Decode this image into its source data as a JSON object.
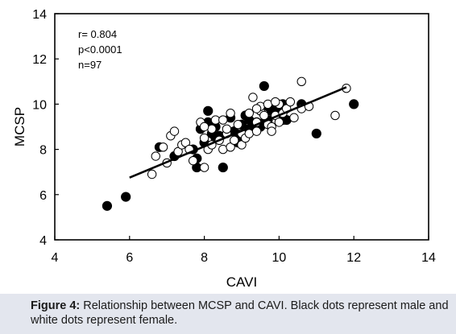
{
  "chart_data": {
    "type": "scatter",
    "xlabel": "CAVI",
    "ylabel": "MCSP",
    "xlim": [
      4,
      14
    ],
    "ylim": [
      4,
      14
    ],
    "x_ticks": [
      4,
      6,
      8,
      10,
      12,
      14
    ],
    "y_ticks": [
      4,
      6,
      8,
      10,
      12,
      14
    ],
    "grid": false,
    "annotations": [
      "r= 0.804",
      "p<0.0001",
      "n=97"
    ],
    "colors": {
      "male": "#000000",
      "female": "#ffffff",
      "outline": "#000000"
    },
    "series": [
      {
        "marker": "filled-circle",
        "points": [
          [
            5.4,
            5.5
          ],
          [
            5.9,
            5.9
          ],
          [
            6.8,
            8.1
          ],
          [
            7.2,
            7.7
          ],
          [
            7.7,
            8.0
          ],
          [
            7.8,
            7.6
          ],
          [
            7.8,
            7.2
          ],
          [
            7.9,
            8.9
          ],
          [
            8.0,
            8.3
          ],
          [
            8.1,
            9.2
          ],
          [
            8.1,
            9.7
          ],
          [
            8.2,
            8.7
          ],
          [
            8.3,
            9.0
          ],
          [
            8.3,
            8.5
          ],
          [
            8.4,
            8.6
          ],
          [
            8.5,
            7.2
          ],
          [
            8.7,
            9.4
          ],
          [
            8.8,
            8.8
          ],
          [
            8.9,
            8.6
          ],
          [
            8.9,
            8.3
          ],
          [
            9.0,
            9.1
          ],
          [
            9.1,
            9.5
          ],
          [
            9.2,
            8.9
          ],
          [
            9.2,
            9.3
          ],
          [
            9.3,
            9.0
          ],
          [
            9.4,
            9.2
          ],
          [
            9.5,
            9.0
          ],
          [
            9.6,
            10.8
          ],
          [
            9.6,
            9.2
          ],
          [
            9.7,
            9.3
          ],
          [
            9.7,
            9.9
          ],
          [
            9.8,
            9.7
          ],
          [
            9.9,
            9.8
          ],
          [
            10.0,
            9.6
          ],
          [
            10.1,
            9.3
          ],
          [
            10.1,
            10.0
          ],
          [
            10.2,
            9.3
          ],
          [
            10.6,
            10.0
          ],
          [
            11.0,
            8.7
          ],
          [
            12.0,
            10.0
          ]
        ]
      },
      {
        "marker": "open-circle",
        "points": [
          [
            6.6,
            6.9
          ],
          [
            6.7,
            7.7
          ],
          [
            6.9,
            8.1
          ],
          [
            7.0,
            7.4
          ],
          [
            7.1,
            8.6
          ],
          [
            7.2,
            8.8
          ],
          [
            7.3,
            7.9
          ],
          [
            7.4,
            8.2
          ],
          [
            7.5,
            8.3
          ],
          [
            7.6,
            8.0
          ],
          [
            7.9,
            9.2
          ],
          [
            8.0,
            7.2
          ],
          [
            8.0,
            8.5
          ],
          [
            8.1,
            8.0
          ],
          [
            8.2,
            8.2
          ],
          [
            8.2,
            8.9
          ],
          [
            8.3,
            9.3
          ],
          [
            8.4,
            8.4
          ],
          [
            8.5,
            8.0
          ],
          [
            8.5,
            9.3
          ],
          [
            8.6,
            8.7
          ],
          [
            8.7,
            8.1
          ],
          [
            8.8,
            8.4
          ],
          [
            8.9,
            9.1
          ],
          [
            9.0,
            8.2
          ],
          [
            9.0,
            8.7
          ],
          [
            9.1,
            8.5
          ],
          [
            9.2,
            9.6
          ],
          [
            9.2,
            8.7
          ],
          [
            9.3,
            10.3
          ],
          [
            9.4,
            9.2
          ],
          [
            9.4,
            8.8
          ],
          [
            9.5,
            9.7
          ],
          [
            9.5,
            9.9
          ],
          [
            9.6,
            9.5
          ],
          [
            9.7,
            9.1
          ],
          [
            9.7,
            10.0
          ],
          [
            9.8,
            9.0
          ],
          [
            9.8,
            8.8
          ],
          [
            9.9,
            9.5
          ],
          [
            10.0,
            9.2
          ],
          [
            10.0,
            10.0
          ],
          [
            10.1,
            9.6
          ],
          [
            10.2,
            9.8
          ],
          [
            10.3,
            10.1
          ],
          [
            10.6,
            9.8
          ],
          [
            10.6,
            11.0
          ],
          [
            10.8,
            9.9
          ],
          [
            11.5,
            9.5
          ],
          [
            11.8,
            10.7
          ],
          [
            8.0,
            9.0
          ],
          [
            9.9,
            10.1
          ],
          [
            8.7,
            9.6
          ],
          [
            7.7,
            7.5
          ],
          [
            9.4,
            9.8
          ],
          [
            8.6,
            8.9
          ],
          [
            10.4,
            9.4
          ]
        ]
      }
    ],
    "regression_line": {
      "x": [
        6.0,
        11.8
      ],
      "y": [
        6.75,
        10.75
      ]
    }
  },
  "caption": {
    "label": "Figure 4:",
    "text": "Relationship between MCSP and CAVI. Black dots represent male and white dots represent female."
  }
}
